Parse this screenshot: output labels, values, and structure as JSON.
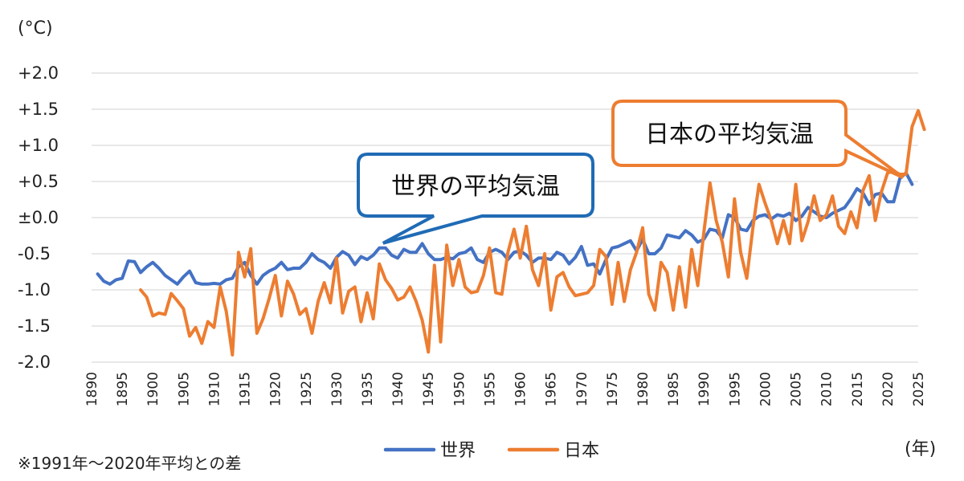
{
  "chart_data": {
    "type": "line",
    "yunit": "(°C)",
    "xunit": "(年)",
    "ylim": [
      -2.0,
      2.0
    ],
    "xlim": [
      1890,
      2025
    ],
    "ytick_labels": [
      {
        "value": 2.0,
        "label": "+2.0"
      },
      {
        "value": 1.5,
        "label": "+1.5"
      },
      {
        "value": 1.0,
        "label": "+1.0"
      },
      {
        "value": 0.5,
        "label": "+0.5"
      },
      {
        "value": 0.0,
        "label": "±0.0"
      },
      {
        "value": -0.5,
        "label": "-0.5"
      },
      {
        "value": -1.0,
        "label": "-1.0"
      },
      {
        "value": -1.5,
        "label": "-1.5"
      },
      {
        "value": -2.0,
        "label": "-2.0"
      }
    ],
    "xticks": [
      1890,
      1895,
      1900,
      1905,
      1910,
      1915,
      1920,
      1925,
      1930,
      1935,
      1940,
      1945,
      1950,
      1955,
      1960,
      1965,
      1970,
      1975,
      1980,
      1985,
      1990,
      1995,
      2000,
      2005,
      2010,
      2015,
      2020,
      2025
    ],
    "grid": true,
    "series": [
      {
        "name": "世界",
        "color": "#4472C4",
        "start_year": 1891,
        "values": [
          -0.78,
          -0.88,
          -0.92,
          -0.86,
          -0.84,
          -0.6,
          -0.61,
          -0.76,
          -0.68,
          -0.62,
          -0.7,
          -0.8,
          -0.86,
          -0.92,
          -0.82,
          -0.74,
          -0.9,
          -0.92,
          -0.92,
          -0.91,
          -0.92,
          -0.86,
          -0.84,
          -0.68,
          -0.62,
          -0.8,
          -0.92,
          -0.8,
          -0.74,
          -0.7,
          -0.62,
          -0.72,
          -0.7,
          -0.7,
          -0.62,
          -0.5,
          -0.58,
          -0.62,
          -0.7,
          -0.55,
          -0.47,
          -0.52,
          -0.65,
          -0.54,
          -0.58,
          -0.52,
          -0.42,
          -0.42,
          -0.52,
          -0.56,
          -0.44,
          -0.48,
          -0.48,
          -0.36,
          -0.5,
          -0.58,
          -0.58,
          -0.55,
          -0.57,
          -0.5,
          -0.48,
          -0.42,
          -0.58,
          -0.62,
          -0.48,
          -0.44,
          -0.48,
          -0.58,
          -0.48,
          -0.46,
          -0.52,
          -0.62,
          -0.56,
          -0.56,
          -0.58,
          -0.48,
          -0.52,
          -0.64,
          -0.55,
          -0.4,
          -0.66,
          -0.64,
          -0.78,
          -0.58,
          -0.42,
          -0.4,
          -0.36,
          -0.32,
          -0.46,
          -0.3,
          -0.5,
          -0.5,
          -0.42,
          -0.24,
          -0.26,
          -0.28,
          -0.18,
          -0.24,
          -0.34,
          -0.3,
          -0.16,
          -0.18,
          -0.28,
          0.04,
          0.0,
          -0.16,
          -0.18,
          -0.04,
          0.02,
          0.04,
          -0.02,
          0.04,
          0.02,
          0.06,
          -0.04,
          0.02,
          0.14,
          0.08,
          0.02,
          0.0,
          0.06,
          0.1,
          0.14,
          0.26,
          0.4,
          0.34,
          0.18,
          0.32,
          0.34,
          0.22,
          0.22,
          0.54,
          0.62,
          0.46
        ]
      },
      {
        "name": "日本",
        "color": "#ED7D31",
        "start_year": 1898,
        "values": [
          -1.0,
          -1.1,
          -1.36,
          -1.32,
          -1.34,
          -1.05,
          -1.15,
          -1.26,
          -1.64,
          -1.52,
          -1.74,
          -1.44,
          -1.52,
          -0.96,
          -1.3,
          -1.9,
          -0.48,
          -0.82,
          -0.43,
          -1.6,
          -1.4,
          -1.12,
          -0.8,
          -1.36,
          -0.88,
          -1.06,
          -1.34,
          -1.26,
          -1.6,
          -1.16,
          -0.9,
          -1.18,
          -0.56,
          -1.32,
          -1.02,
          -0.96,
          -1.44,
          -1.04,
          -1.4,
          -0.64,
          -0.86,
          -0.98,
          -1.14,
          -1.1,
          -0.96,
          -1.16,
          -1.42,
          -1.86,
          -0.66,
          -1.72,
          -0.38,
          -0.94,
          -0.58,
          -0.96,
          -1.04,
          -1.02,
          -0.8,
          -0.42,
          -1.04,
          -1.06,
          -0.48,
          -0.16,
          -0.56,
          -0.12,
          -0.72,
          -0.94,
          -0.5,
          -1.28,
          -0.82,
          -0.76,
          -0.96,
          -1.08,
          -1.06,
          -1.04,
          -0.94,
          -0.44,
          -0.54,
          -1.2,
          -0.62,
          -1.16,
          -0.72,
          -0.48,
          -0.14,
          -1.06,
          -1.28,
          -0.62,
          -0.76,
          -1.28,
          -0.68,
          -1.24,
          -0.44,
          -0.94,
          -0.2,
          0.48,
          -0.04,
          -0.34,
          -0.82,
          0.26,
          -0.48,
          -0.84,
          -0.14,
          0.46,
          0.2,
          -0.04,
          -0.36,
          -0.04,
          -0.36,
          0.46,
          -0.32,
          -0.06,
          0.3,
          -0.04,
          0.04,
          0.3,
          -0.12,
          -0.22,
          0.08,
          -0.14,
          0.38,
          0.58,
          -0.04,
          0.36,
          0.62,
          0.64,
          0.6,
          0.6,
          1.26,
          1.48,
          1.22
        ]
      }
    ],
    "annotations": [
      {
        "text": "世界の平均気温",
        "target_series": "世界",
        "target_year": 1938,
        "border_color": "#1F6BB5"
      },
      {
        "text": "日本の平均気温",
        "target_series": "日本",
        "target_year": 2022,
        "border_color": "#ED7D31"
      }
    ],
    "legend": {
      "placement": "bottom-center",
      "entries": [
        "世界",
        "日本"
      ]
    },
    "footnote": "※1991年〜2020年平均との差"
  }
}
